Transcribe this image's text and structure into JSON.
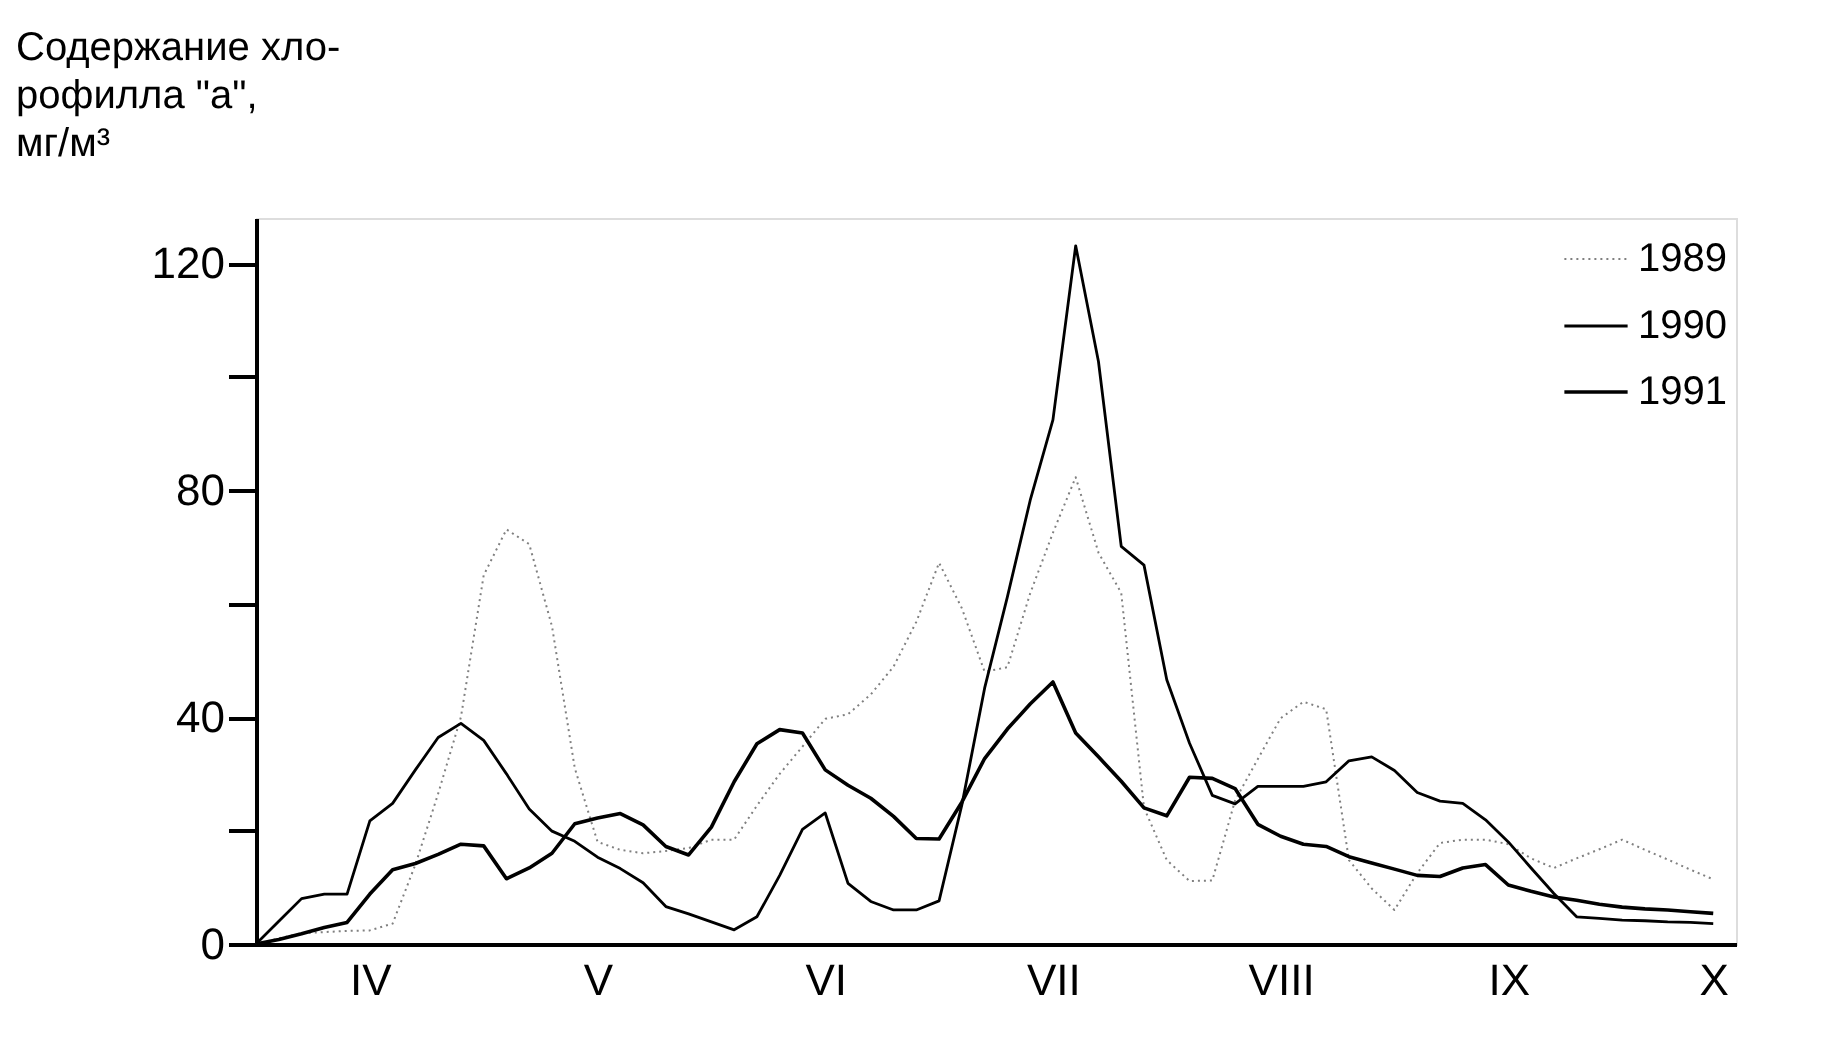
{
  "chart_data": {
    "type": "line",
    "ylabel": "Содержание хло- рофилла \"а\", мг/м³",
    "categories": [
      null,
      null,
      null,
      null,
      null,
      "IV",
      null,
      null,
      null,
      null,
      null,
      null,
      null,
      null,
      null,
      "V",
      null,
      null,
      null,
      null,
      null,
      null,
      null,
      null,
      null,
      "VI",
      null,
      null,
      null,
      null,
      null,
      null,
      null,
      null,
      null,
      "VII",
      null,
      null,
      null,
      null,
      null,
      null,
      null,
      null,
      null,
      "VIII",
      null,
      null,
      null,
      null,
      null,
      null,
      null,
      null,
      null,
      "IX",
      null,
      null,
      null,
      null,
      null,
      null,
      null,
      null,
      "X",
      null
    ],
    "ylim": [
      0,
      128
    ],
    "yticks": [
      0,
      {
        "value": 20,
        "label": null
      },
      40,
      {
        "value": 60,
        "label": null
      },
      80,
      {
        "value": 100,
        "label": null
      },
      120
    ],
    "grid": false,
    "legend": "top right",
    "marker": "none",
    "series": [
      {
        "name": "1989",
        "color": "#808080",
        "line_style": "dotted",
        "values": [
          0,
          1.0,
          1.9,
          2.1,
          2.3,
          2.4,
          3.6,
          14.0,
          26.5,
          40,
          65,
          73.1,
          70.5,
          56,
          31,
          18,
          16.6,
          16,
          16.4,
          16.9,
          18.4,
          18.4,
          24.4,
          30,
          34.8,
          39.7,
          40.5,
          44,
          48.9,
          56.8,
          67.2,
          59.2,
          48,
          48.8,
          61.8,
          72.5,
          82.3,
          69,
          61.9,
          24,
          14.8,
          11.1,
          11.2,
          25.3,
          32.6,
          39.8,
          42.7,
          41.4,
          14.8,
          9.8,
          6,
          12.5,
          17.8,
          18.4,
          18.4,
          17.6,
          15.1,
          13.4,
          15.1,
          16.7,
          18.4,
          16.6,
          14.9,
          13.1,
          11.4,
          null
        ]
      },
      {
        "name": "1990",
        "color": "#000000",
        "line_style": "solid",
        "values": [
          0,
          4.0,
          8.0,
          8.8,
          8.8,
          21.7,
          24.8,
          30.7,
          36.4,
          38.9,
          35.9,
          30,
          23.8,
          19.9,
          18.1,
          15.3,
          13.3,
          10.8,
          6.6,
          5.3,
          3.9,
          2.5,
          4.8,
          12.1,
          20.2,
          23.1,
          10.7,
          7.5,
          6,
          6,
          7.6,
          24.5,
          45.1,
          61.2,
          78.2,
          92.4,
          123.1,
          102.7,
          70.1,
          66.8,
          46.6,
          35.4,
          26.2,
          24.7,
          27.8,
          27.8,
          27.8,
          28.6,
          32.3,
          33.0,
          30.6,
          26.7,
          25.2,
          24.8,
          21.9,
          18.0,
          13.4,
          8.9,
          4.8,
          4.5,
          4.2,
          4.1,
          3.9,
          3.8,
          3.6,
          null
        ]
      },
      {
        "name": "1991",
        "color": "#000000",
        "line_style": "solid",
        "values": [
          0,
          0.8,
          1.8,
          2.9,
          3.8,
          8.8,
          13.1,
          14.2,
          15.8,
          17.6,
          17.3,
          11.5,
          13.4,
          16.0,
          21.2,
          22.2,
          23.0,
          21.0,
          17.2,
          15.7,
          20.6,
          28.6,
          35.3,
          37.8,
          37.2,
          30.7,
          28.0,
          25.7,
          22.5,
          18.6,
          18.5,
          25.0,
          32.7,
          37.9,
          42.3,
          46.2,
          37.2,
          33.0,
          28.7,
          24.0,
          22.6,
          29.4,
          29.2,
          27.4,
          21.1,
          19.0,
          17.6,
          17.2,
          15.4,
          14.3,
          13.2,
          12.1,
          11.9,
          13.4,
          14.0,
          10.4,
          9.3,
          8.3,
          7.7,
          7.0,
          6.5,
          6.2,
          6.0,
          5.7,
          5.4,
          null
        ]
      }
    ]
  }
}
